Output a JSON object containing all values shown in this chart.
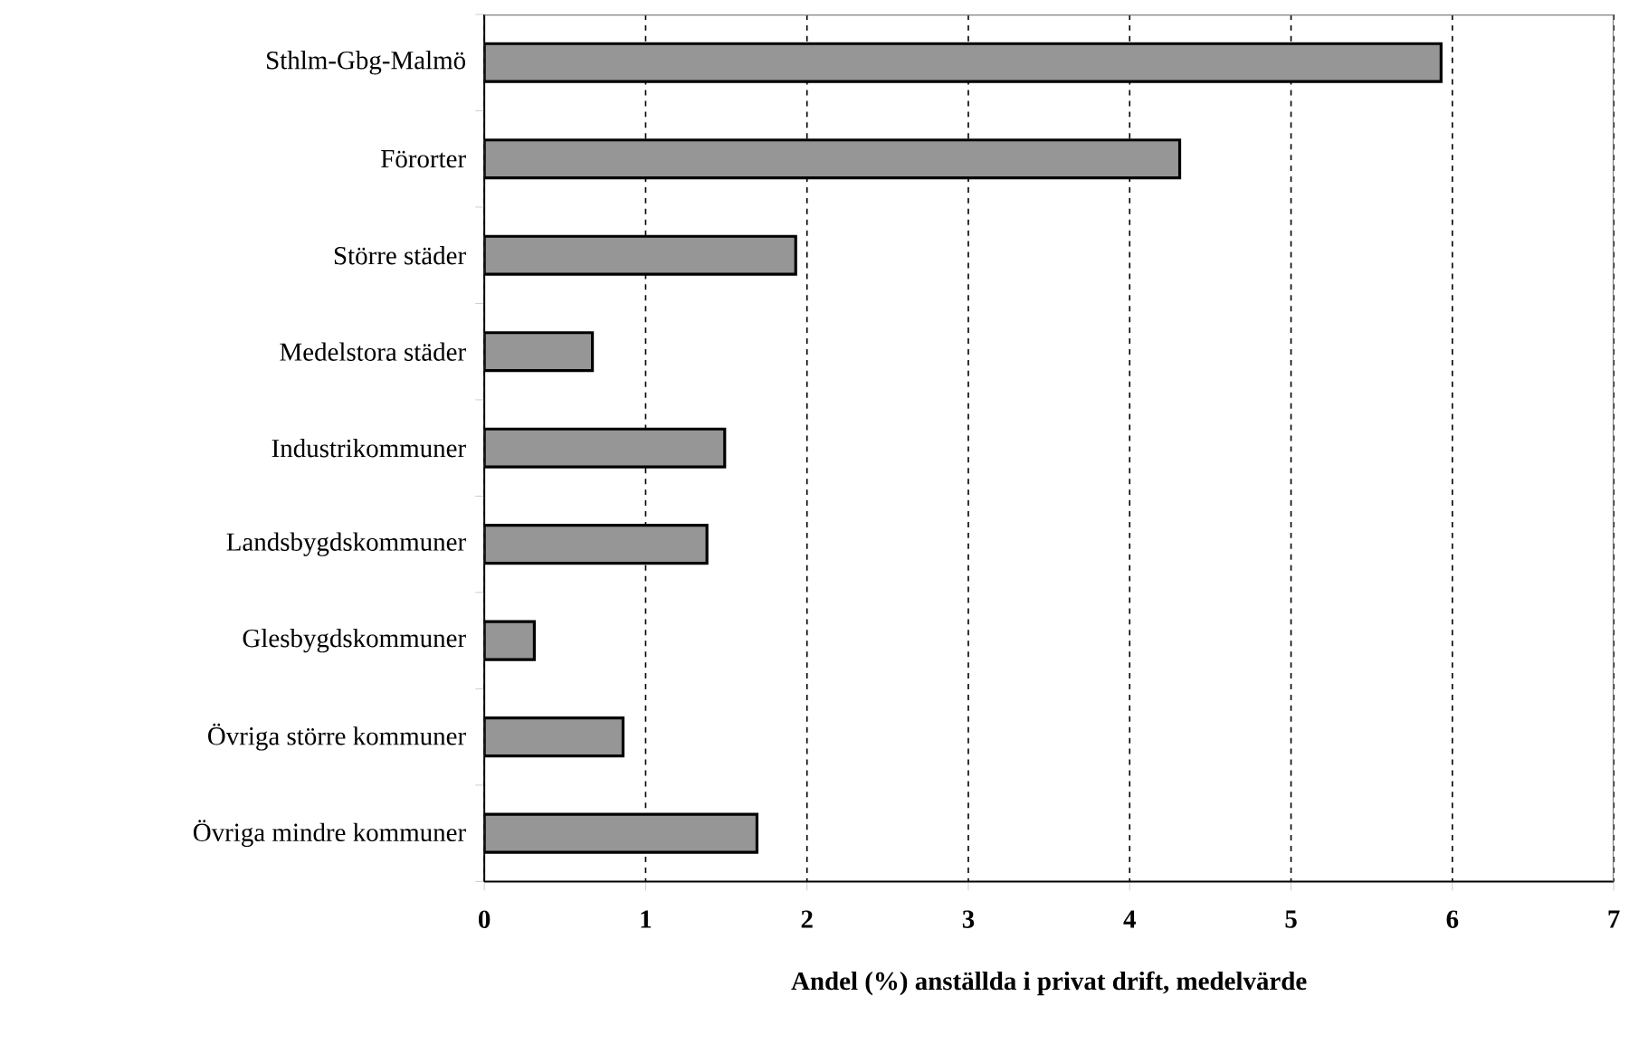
{
  "chart_data": {
    "type": "bar",
    "orientation": "horizontal",
    "xlabel": "Andel (%) anställda i privat drift, medelvärde",
    "categories": [
      "Sthlm-Gbg-Malmö",
      "Förorter",
      "Större städer",
      "Medelstora städer",
      "Industrikommuner",
      "Landsbygdskommuner",
      "Glesbygdskommuner",
      "Övriga större kommuner",
      "Övriga mindre kommuner"
    ],
    "values": [
      5.93,
      4.31,
      1.93,
      0.67,
      1.49,
      1.38,
      0.31,
      0.86,
      1.69
    ],
    "color": "#969696",
    "xlim": [
      0,
      7
    ],
    "xticks": [
      0,
      1,
      2,
      3,
      4,
      5,
      6,
      7
    ],
    "grid": "x"
  }
}
